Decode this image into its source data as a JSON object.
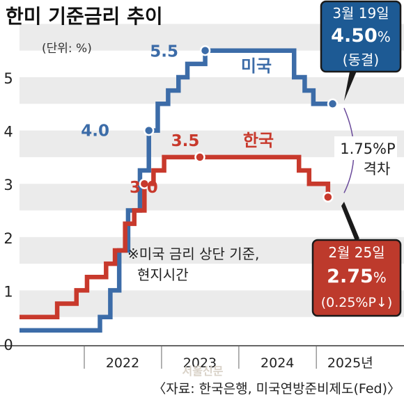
{
  "chart_data": {
    "type": "line",
    "step": true,
    "title": "한미 기준금리 추이",
    "unit_label": "(단위: %)",
    "note": "※미국 금리 상단 기준,\n현지시간",
    "source": "〈자료: 한국은행, 미국연방준비제도(Fed)〉",
    "watermark": "서울신문",
    "ylim": [
      0,
      5.75
    ],
    "yticks": [
      0,
      1,
      2,
      3,
      4,
      5
    ],
    "x_ticks": [
      "2022",
      "2023",
      "2024",
      "2025년"
    ],
    "xlim": [
      "2021-03-01",
      "2025-09-01"
    ],
    "grid": "horizontal bands",
    "series": [
      {
        "name": "미국",
        "color": "#3c6ca8",
        "points": [
          [
            "2021-03-01",
            0.25
          ],
          [
            "2022-03-16",
            0.5
          ],
          [
            "2022-05-04",
            1.0
          ],
          [
            "2022-06-15",
            1.75
          ],
          [
            "2022-07-27",
            2.5
          ],
          [
            "2022-09-21",
            3.25
          ],
          [
            "2022-11-02",
            4.0
          ],
          [
            "2022-12-14",
            4.5
          ],
          [
            "2023-02-01",
            4.75
          ],
          [
            "2023-03-22",
            5.0
          ],
          [
            "2023-05-03",
            5.25
          ],
          [
            "2023-07-26",
            5.5
          ],
          [
            "2024-09-18",
            5.0
          ],
          [
            "2024-11-07",
            4.75
          ],
          [
            "2024-12-18",
            4.5
          ],
          [
            "2025-03-19",
            4.5
          ]
        ]
      },
      {
        "name": "한국",
        "color": "#c8392c",
        "points": [
          [
            "2021-03-01",
            0.5
          ],
          [
            "2021-08-26",
            0.75
          ],
          [
            "2021-11-25",
            1.0
          ],
          [
            "2022-01-14",
            1.25
          ],
          [
            "2022-04-14",
            1.5
          ],
          [
            "2022-05-26",
            1.75
          ],
          [
            "2022-07-13",
            2.25
          ],
          [
            "2022-08-25",
            2.5
          ],
          [
            "2022-10-12",
            3.0
          ],
          [
            "2022-11-24",
            3.25
          ],
          [
            "2023-01-13",
            3.5
          ],
          [
            "2024-10-11",
            3.25
          ],
          [
            "2024-11-28",
            3.0
          ],
          [
            "2025-02-25",
            2.75
          ]
        ]
      }
    ],
    "annotations": {
      "us_4": "4.0",
      "us_55": "5.5",
      "kr_30": "3.0",
      "kr_35": "3.5",
      "gap_value": "1.75%P",
      "gap_label": "격차",
      "us_box": {
        "date": "3월 19일",
        "value": "4.50",
        "unit": "%",
        "status": "(동결)"
      },
      "kr_box": {
        "date": "2월 25일",
        "value": "2.75",
        "unit": "%",
        "change": "(0.25%P↓)"
      }
    }
  }
}
